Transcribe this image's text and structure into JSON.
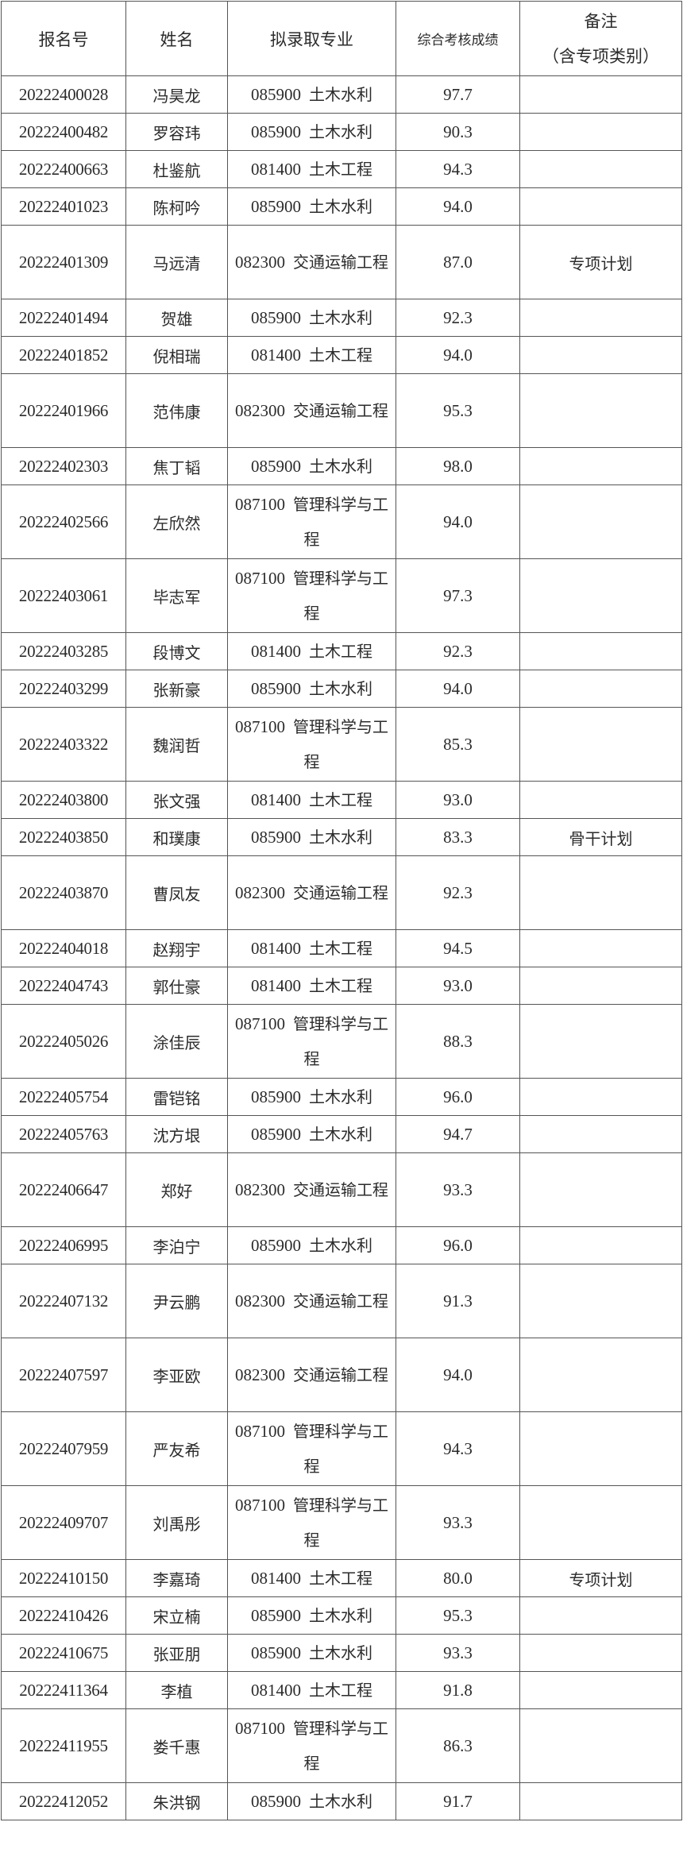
{
  "table": {
    "headers": {
      "id": "报名号",
      "name": "姓名",
      "major": "拟录取专业",
      "score": "综合考核成绩",
      "remark_line1": "备注",
      "remark_line2": "（含专项类别）"
    },
    "rows": [
      {
        "id": "20222400028",
        "name": "冯昊龙",
        "major_code": "085900",
        "major_name": "土木水利",
        "score": "97.7",
        "remark": ""
      },
      {
        "id": "20222400482",
        "name": "罗容玮",
        "major_code": "085900",
        "major_name": "土木水利",
        "score": "90.3",
        "remark": ""
      },
      {
        "id": "20222400663",
        "name": "杜鉴航",
        "major_code": "081400",
        "major_name": "土木工程",
        "score": "94.3",
        "remark": ""
      },
      {
        "id": "20222401023",
        "name": "陈柯吟",
        "major_code": "085900",
        "major_name": "土木水利",
        "score": "94.0",
        "remark": ""
      },
      {
        "id": "20222401309",
        "name": "马远清",
        "major_code": "082300",
        "major_name": "交通运输工程",
        "score": "87.0",
        "remark": "专项计划"
      },
      {
        "id": "20222401494",
        "name": "贺雄",
        "major_code": "085900",
        "major_name": "土木水利",
        "score": "92.3",
        "remark": ""
      },
      {
        "id": "20222401852",
        "name": "倪相瑞",
        "major_code": "081400",
        "major_name": "土木工程",
        "score": "94.0",
        "remark": ""
      },
      {
        "id": "20222401966",
        "name": "范伟康",
        "major_code": "082300",
        "major_name": "交通运输工程",
        "score": "95.3",
        "remark": ""
      },
      {
        "id": "20222402303",
        "name": "焦丁韬",
        "major_code": "085900",
        "major_name": "土木水利",
        "score": "98.0",
        "remark": ""
      },
      {
        "id": "20222402566",
        "name": "左欣然",
        "major_code": "087100",
        "major_name": "管理科学与工程",
        "score": "94.0",
        "remark": ""
      },
      {
        "id": "20222403061",
        "name": "毕志军",
        "major_code": "087100",
        "major_name": "管理科学与工程",
        "score": "97.3",
        "remark": ""
      },
      {
        "id": "20222403285",
        "name": "段博文",
        "major_code": "081400",
        "major_name": "土木工程",
        "score": "92.3",
        "remark": ""
      },
      {
        "id": "20222403299",
        "name": "张新豪",
        "major_code": "085900",
        "major_name": "土木水利",
        "score": "94.0",
        "remark": ""
      },
      {
        "id": "20222403322",
        "name": "魏润哲",
        "major_code": "087100",
        "major_name": "管理科学与工程",
        "score": "85.3",
        "remark": ""
      },
      {
        "id": "20222403800",
        "name": "张文强",
        "major_code": "081400",
        "major_name": "土木工程",
        "score": "93.0",
        "remark": ""
      },
      {
        "id": "20222403850",
        "name": "和璞康",
        "major_code": "085900",
        "major_name": "土木水利",
        "score": "83.3",
        "remark": "骨干计划"
      },
      {
        "id": "20222403870",
        "name": "曹凤友",
        "major_code": "082300",
        "major_name": "交通运输工程",
        "score": "92.3",
        "remark": ""
      },
      {
        "id": "20222404018",
        "name": "赵翔宇",
        "major_code": "081400",
        "major_name": "土木工程",
        "score": "94.5",
        "remark": ""
      },
      {
        "id": "20222404743",
        "name": "郭仕豪",
        "major_code": "081400",
        "major_name": "土木工程",
        "score": "93.0",
        "remark": ""
      },
      {
        "id": "20222405026",
        "name": "涂佳辰",
        "major_code": "087100",
        "major_name": "管理科学与工程",
        "score": "88.3",
        "remark": ""
      },
      {
        "id": "20222405754",
        "name": "雷铠铭",
        "major_code": "085900",
        "major_name": "土木水利",
        "score": "96.0",
        "remark": ""
      },
      {
        "id": "20222405763",
        "name": "沈方垠",
        "major_code": "085900",
        "major_name": "土木水利",
        "score": "94.7",
        "remark": ""
      },
      {
        "id": "20222406647",
        "name": "郑好",
        "major_code": "082300",
        "major_name": "交通运输工程",
        "score": "93.3",
        "remark": ""
      },
      {
        "id": "20222406995",
        "name": "李泊宁",
        "major_code": "085900",
        "major_name": "土木水利",
        "score": "96.0",
        "remark": ""
      },
      {
        "id": "20222407132",
        "name": "尹云鹏",
        "major_code": "082300",
        "major_name": "交通运输工程",
        "score": "91.3",
        "remark": ""
      },
      {
        "id": "20222407597",
        "name": "李亚欧",
        "major_code": "082300",
        "major_name": "交通运输工程",
        "score": "94.0",
        "remark": ""
      },
      {
        "id": "20222407959",
        "name": "严友希",
        "major_code": "087100",
        "major_name": "管理科学与工程",
        "score": "94.3",
        "remark": ""
      },
      {
        "id": "20222409707",
        "name": "刘禹彤",
        "major_code": "087100",
        "major_name": "管理科学与工程",
        "score": "93.3",
        "remark": ""
      },
      {
        "id": "20222410150",
        "name": "李嘉琦",
        "major_code": "081400",
        "major_name": "土木工程",
        "score": "80.0",
        "remark": "专项计划"
      },
      {
        "id": "20222410426",
        "name": "宋立楠",
        "major_code": "085900",
        "major_name": "土木水利",
        "score": "95.3",
        "remark": ""
      },
      {
        "id": "20222410675",
        "name": "张亚朋",
        "major_code": "085900",
        "major_name": "土木水利",
        "score": "93.3",
        "remark": ""
      },
      {
        "id": "20222411364",
        "name": "李植",
        "major_code": "081400",
        "major_name": "土木工程",
        "score": "91.8",
        "remark": ""
      },
      {
        "id": "20222411955",
        "name": "娄千惠",
        "major_code": "087100",
        "major_name": "管理科学与工程",
        "score": "86.3",
        "remark": ""
      },
      {
        "id": "20222412052",
        "name": "朱洪钢",
        "major_code": "085900",
        "major_name": "土木水利",
        "score": "91.7",
        "remark": ""
      }
    ]
  }
}
